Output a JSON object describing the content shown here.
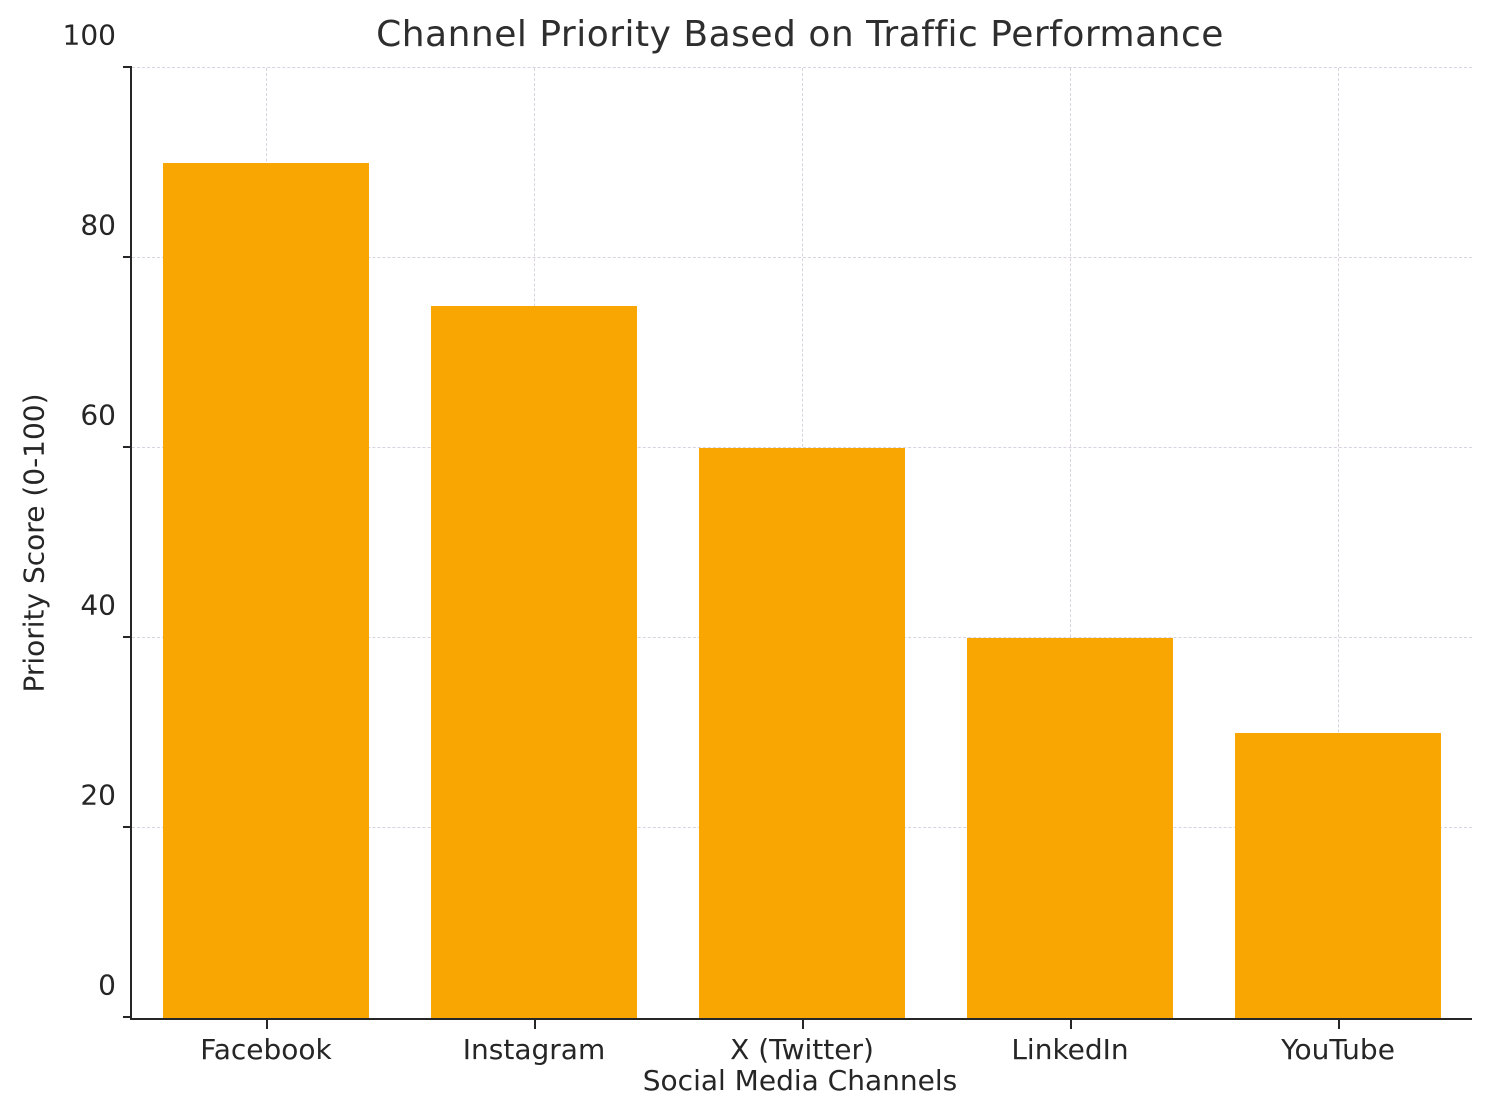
{
  "chart_data": {
    "type": "bar",
    "title": "Channel Priority Based on Traffic Performance",
    "categories": [
      "Facebook",
      "Instagram",
      "X (Twitter)",
      "LinkedIn",
      "YouTube"
    ],
    "values": [
      90,
      75,
      60,
      40,
      30
    ],
    "xlabel": "Social Media Channels",
    "ylabel": "Priority Score (0-100)",
    "ylim": [
      0,
      100
    ],
    "yticks": [
      0,
      20,
      40,
      60,
      80,
      100
    ],
    "grid": "dashed, horizontal and vertical",
    "legend": "none",
    "bar_color": "#f9a602",
    "grid_color": "#d9d2e0",
    "axis_color": "#262626",
    "text_color": "#262626",
    "background_color": "#ffffff"
  }
}
